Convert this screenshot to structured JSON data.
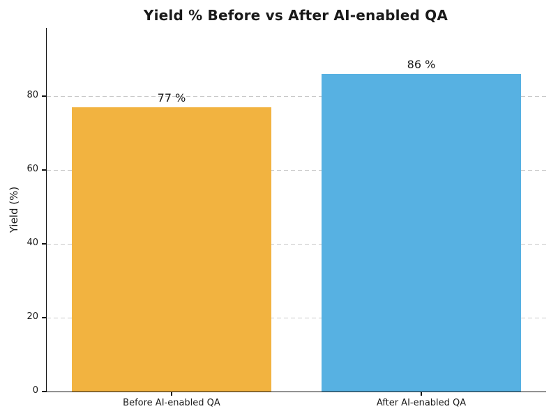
{
  "chart_data": {
    "type": "bar",
    "title": "Yield % Before vs After AI-enabled QA",
    "categories": [
      "Before AI-enabled QA",
      "After AI-enabled QA"
    ],
    "values": [
      77,
      86
    ],
    "bar_labels": [
      "77 %",
      "86 %"
    ],
    "bar_colors": [
      "#F2B340",
      "#57B1E2"
    ],
    "xlabel": "",
    "ylabel": "Yield (%)",
    "ylim": [
      0,
      98.5
    ],
    "yticks": [
      0,
      20,
      40,
      60,
      80
    ],
    "bar_width_fraction": 0.8,
    "grid": "horizontal-dashed",
    "grid_color": "#C9C9C9",
    "legend": "none",
    "background": "#FFFFFF",
    "text_color": "#1A1A1A"
  }
}
